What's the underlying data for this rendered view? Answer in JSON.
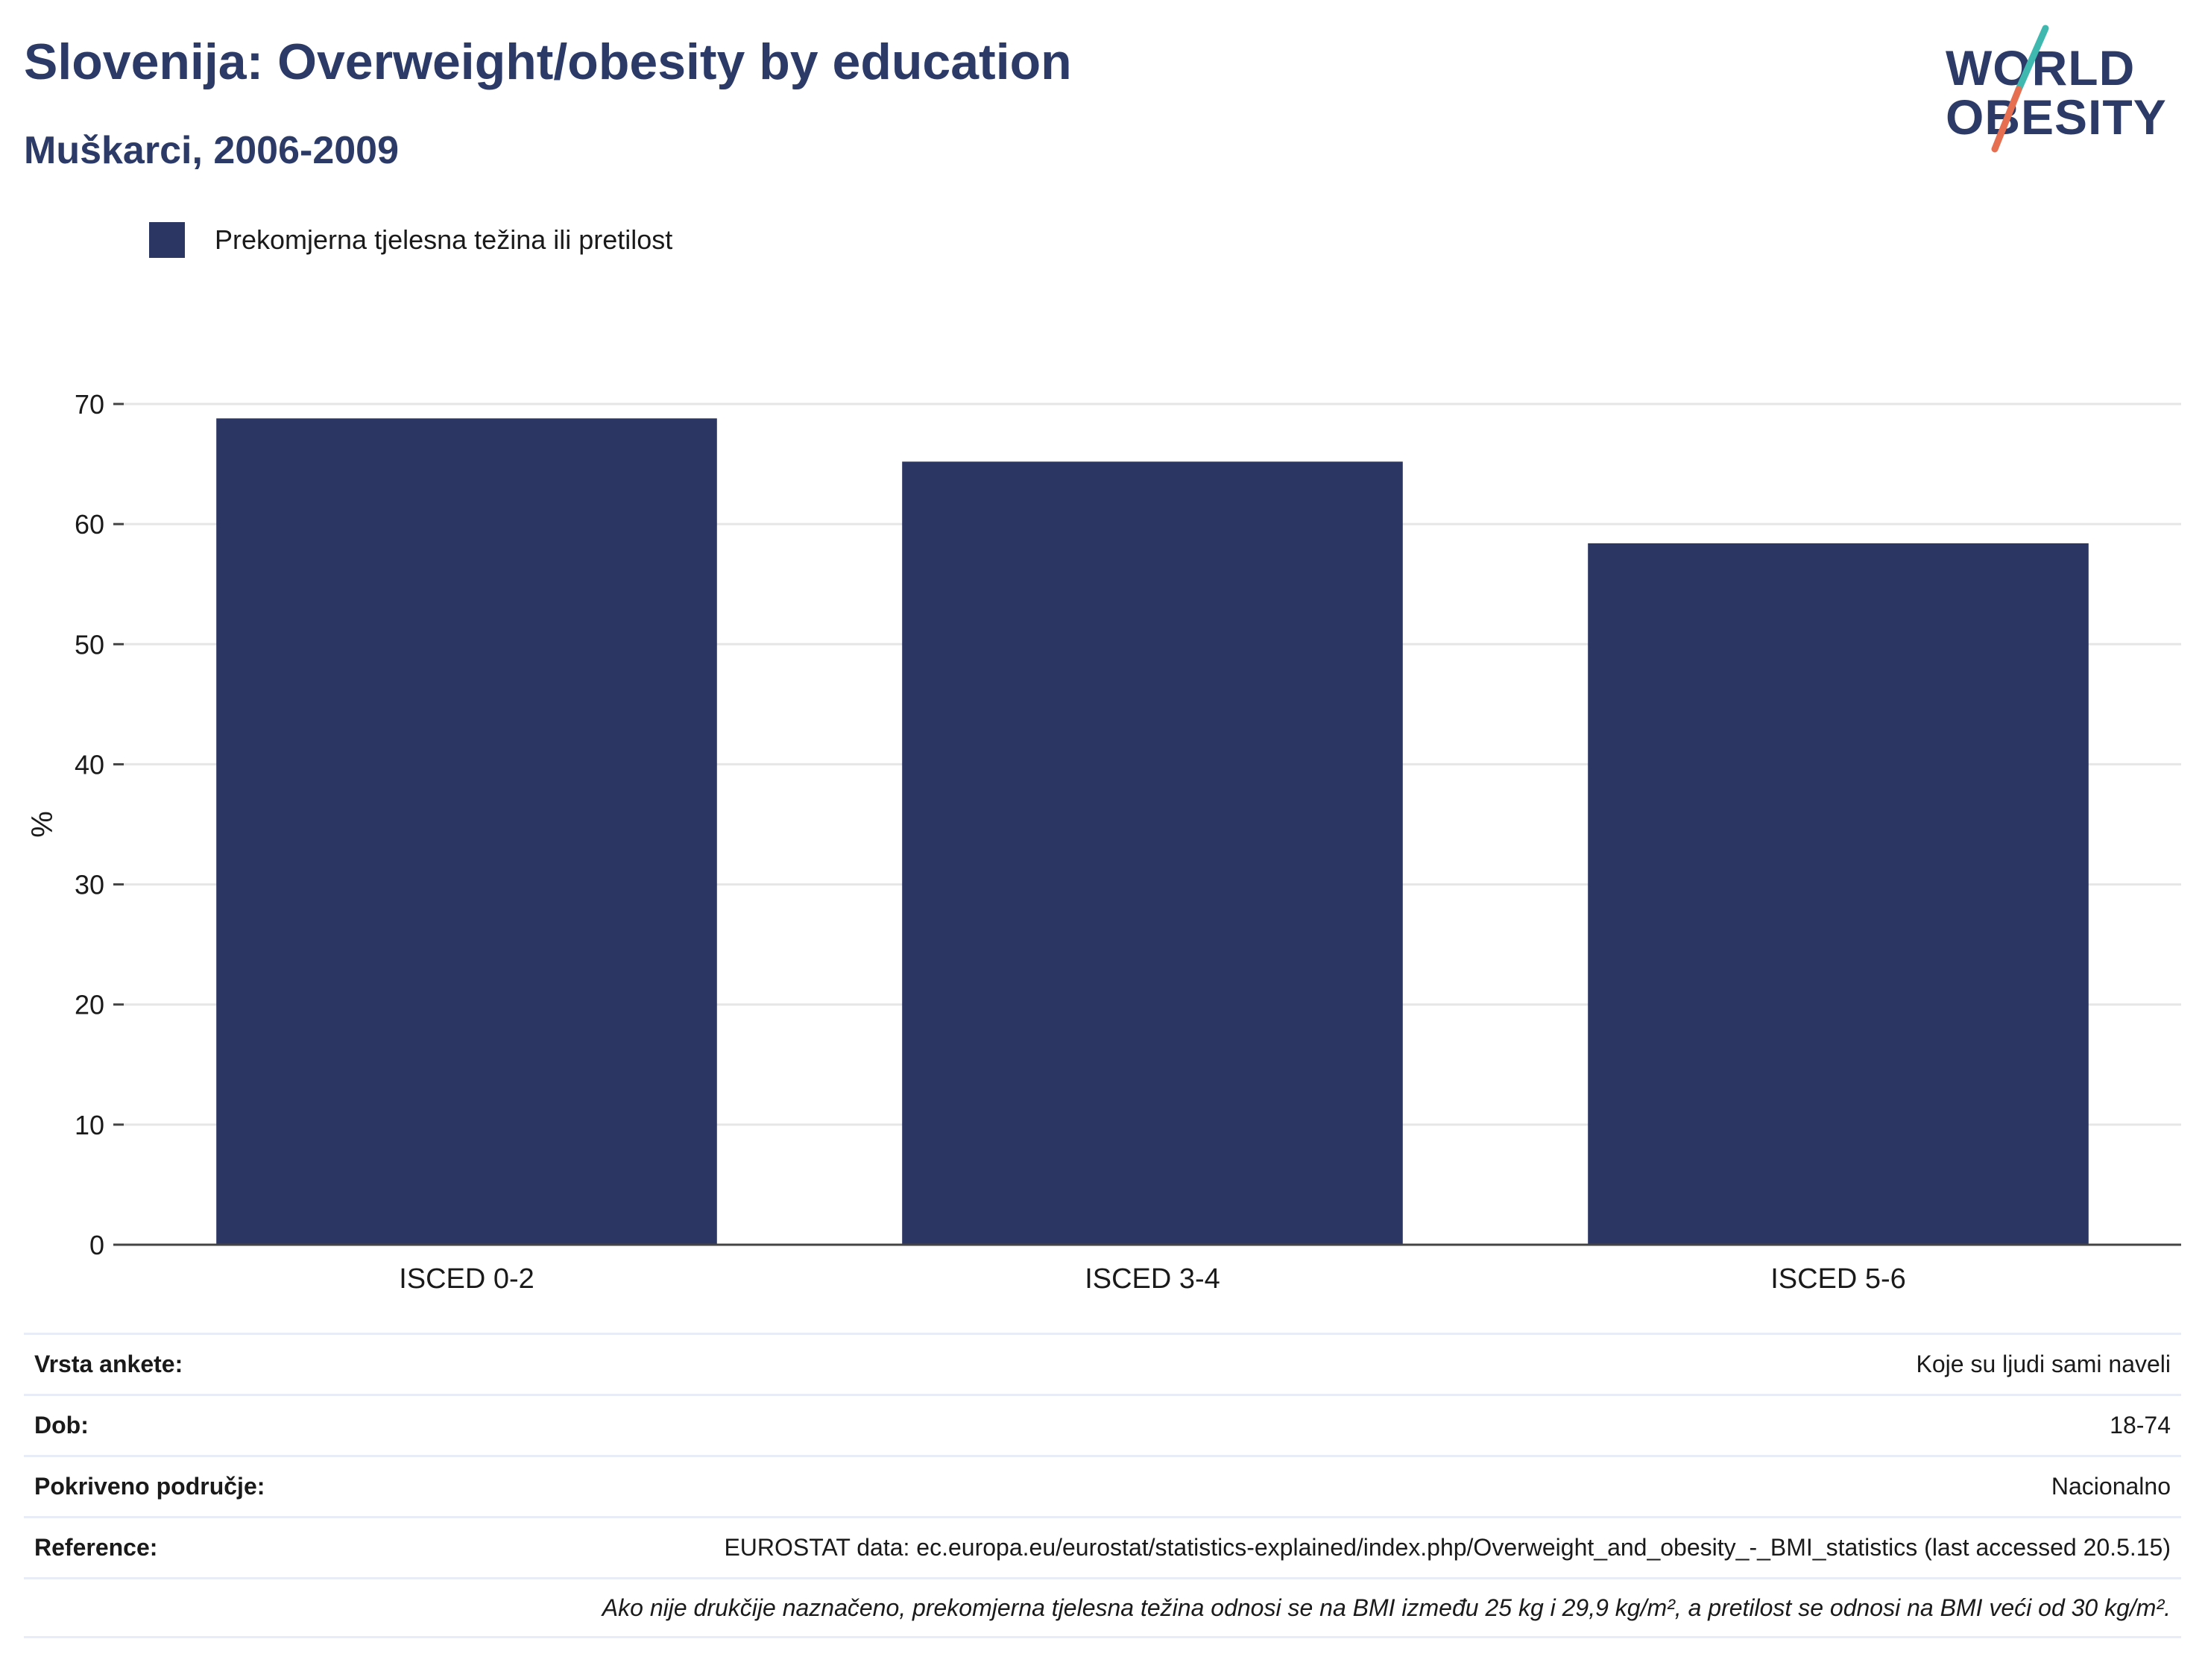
{
  "header": {
    "title": "Slovenija: Overweight/obesity by education",
    "subtitle": "Muškarci, 2006-2009"
  },
  "logo": {
    "line1": "WORLD",
    "line2": "OBESITY",
    "slash_colors": [
      "#3fb8af",
      "#e76f51"
    ]
  },
  "colors": {
    "bar": "#2b3663",
    "grid": "#e6e6e6",
    "axis": "#444444"
  },
  "chart_data": {
    "type": "bar",
    "categories": [
      "ISCED 0-2",
      "ISCED 3-4",
      "ISCED 5-6"
    ],
    "series": [
      {
        "name": "Prekomjerna tjelesna težina ili pretilost",
        "values": [
          68.8,
          65.2,
          58.4
        ]
      }
    ],
    "ylabel": "%",
    "ylim": [
      0,
      70
    ],
    "yticks": [
      0,
      10,
      20,
      30,
      40,
      50,
      60,
      70
    ],
    "grid": true,
    "legend_position": "top-left"
  },
  "meta": {
    "rows": [
      {
        "label": "Vrsta ankete:",
        "value": "Koje su ljudi sami naveli"
      },
      {
        "label": "Dob:",
        "value": "18-74"
      },
      {
        "label": "Pokriveno područje:",
        "value": "Nacionalno"
      },
      {
        "label": "Reference:",
        "value": "EUROSTAT data: ec.europa.eu/eurostat/statistics-explained/index.php/Overweight_and_obesity_-_BMI_statistics (last accessed 20.5.15)"
      }
    ],
    "note": "Ako nije drukčije naznačeno, prekomjerna tjelesna težina odnosi se na BMI između 25 kg i 29,9 kg/m², a pretilost se odnosi na BMI veći od 30 kg/m²."
  }
}
